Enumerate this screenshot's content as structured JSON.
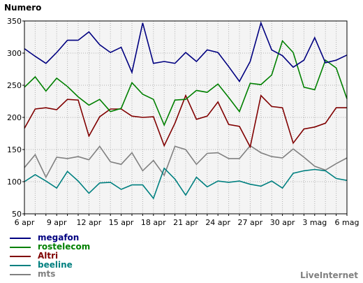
{
  "chart_data": {
    "type": "line",
    "ylabel": "Numero",
    "ylim": [
      50,
      350
    ],
    "yticks": [
      50,
      100,
      150,
      200,
      250,
      300,
      350
    ],
    "x": [
      "6 apr",
      "7 apr",
      "8 apr",
      "9 apr",
      "10 apr",
      "11 apr",
      "12 apr",
      "13 apr",
      "14 apr",
      "15 apr",
      "16 apr",
      "17 apr",
      "18 apr",
      "19 apr",
      "20 apr",
      "21 apr",
      "22 apr",
      "23 apr",
      "24 apr",
      "25 apr",
      "26 apr",
      "27 apr",
      "28 apr",
      "29 apr",
      "30 apr",
      "1 mag",
      "2 mag",
      "3 mag",
      "4 mag",
      "5 mag",
      "6 mag"
    ],
    "xtick_labels": [
      "6 apr",
      "9 apr",
      "12 apr",
      "15 apr",
      "18 apr",
      "21 apr",
      "24 apr",
      "27 apr",
      "30 apr",
      "3 mag",
      "6 mag"
    ],
    "grid": true,
    "legend_position": "bottom-left",
    "series": [
      {
        "name": "megafon",
        "color": "#000080",
        "values": [
          307,
          295,
          284,
          301,
          320,
          320,
          333,
          313,
          301,
          309,
          270,
          347,
          284,
          287,
          284,
          301,
          287,
          305,
          301,
          279,
          256,
          287,
          347,
          305,
          296,
          278,
          289,
          324,
          285,
          289,
          297
        ]
      },
      {
        "name": "rostelecom",
        "color": "#008000",
        "values": [
          247,
          263,
          241,
          261,
          248,
          232,
          219,
          228,
          209,
          214,
          254,
          236,
          228,
          188,
          227,
          228,
          242,
          239,
          252,
          231,
          209,
          253,
          251,
          266,
          319,
          301,
          247,
          243,
          289,
          277,
          229
        ]
      },
      {
        "name": "Altri",
        "color": "#800000",
        "values": [
          183,
          213,
          215,
          212,
          228,
          227,
          171,
          201,
          213,
          213,
          202,
          200,
          201,
          156,
          191,
          234,
          197,
          202,
          224,
          189,
          186,
          154,
          234,
          217,
          215,
          160,
          182,
          185,
          191,
          215,
          215
        ]
      },
      {
        "name": "beeline",
        "color": "#008080",
        "values": [
          100,
          111,
          101,
          90,
          116,
          101,
          82,
          98,
          99,
          88,
          95,
          95,
          74,
          121,
          104,
          79,
          107,
          92,
          101,
          99,
          101,
          96,
          93,
          101,
          90,
          113,
          117,
          119,
          117,
          105,
          102
        ]
      },
      {
        "name": "mts",
        "color": "#808080",
        "values": [
          122,
          142,
          107,
          138,
          136,
          139,
          134,
          155,
          131,
          127,
          145,
          117,
          133,
          110,
          155,
          150,
          127,
          144,
          145,
          136,
          136,
          156,
          145,
          139,
          137,
          151,
          138,
          124,
          118,
          128,
          137
        ]
      }
    ]
  },
  "legend": {
    "items": [
      {
        "label": "megafon",
        "color": "#000080"
      },
      {
        "label": "rostelecom",
        "color": "#008000"
      },
      {
        "label": "Altri",
        "color": "#800000"
      },
      {
        "label": "beeline",
        "color": "#008080"
      },
      {
        "label": "mts",
        "color": "#808080"
      }
    ]
  },
  "watermark": "LiveInternet",
  "colors": {
    "plot_background": "#f4f4f4",
    "grid": "#b0b0b0",
    "axis": "#000000",
    "tick_text": "#000000"
  }
}
